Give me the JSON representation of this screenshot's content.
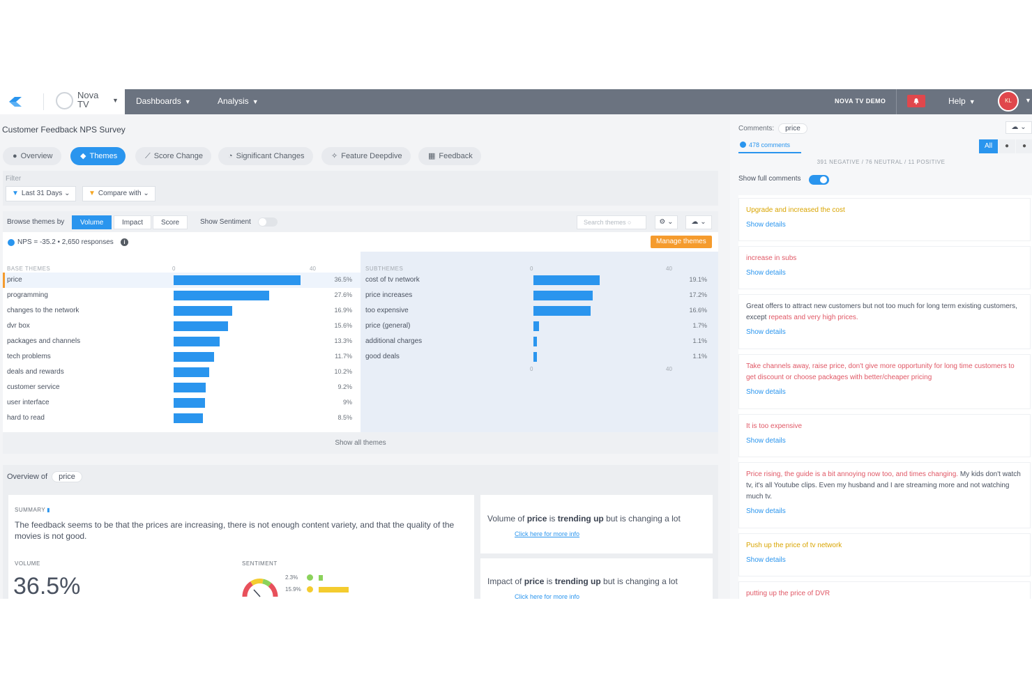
{
  "topbar": {
    "brand": "Nova TV",
    "nav": [
      {
        "label": "Dashboards"
      },
      {
        "label": "Analysis"
      }
    ],
    "demo_label": "NOVA TV DEMO",
    "help": "Help",
    "avatar_initials": "KL"
  },
  "page_title": "Customer Feedback NPS Survey",
  "tabs": [
    {
      "label": "Overview",
      "icon": "info-icon"
    },
    {
      "label": "Themes",
      "icon": "tag-icon",
      "active": true
    },
    {
      "label": "Score Change",
      "icon": "line-chart-icon"
    },
    {
      "label": "Significant Changes",
      "icon": "stopwatch-icon"
    },
    {
      "label": "Feature Deepdive",
      "icon": "magic-wand-icon"
    },
    {
      "label": "Feedback",
      "icon": "table-icon"
    }
  ],
  "filter": {
    "label": "Filter",
    "date_range": "Last 31 Days",
    "compare": "Compare with"
  },
  "browse": {
    "label": "Browse themes by",
    "options": [
      "Volume",
      "Impact",
      "Score"
    ],
    "active": "Volume",
    "show_sentiment": "Show Sentiment",
    "search_placeholder": "Search themes"
  },
  "nps": {
    "text": "NPS = -35.2 • 2,650 responses",
    "manage_button": "Manage themes"
  },
  "base_themes": {
    "header": "BASE THEMES",
    "axis_min": "0",
    "axis_max": "40",
    "rows": [
      {
        "label": "price",
        "value": 36.5,
        "pct": "36.5%"
      },
      {
        "label": "programming",
        "value": 27.6,
        "pct": "27.6%"
      },
      {
        "label": "changes to the network",
        "value": 16.9,
        "pct": "16.9%"
      },
      {
        "label": "dvr box",
        "value": 15.6,
        "pct": "15.6%"
      },
      {
        "label": "packages and channels",
        "value": 13.3,
        "pct": "13.3%"
      },
      {
        "label": "tech problems",
        "value": 11.7,
        "pct": "11.7%"
      },
      {
        "label": "deals and rewards",
        "value": 10.2,
        "pct": "10.2%"
      },
      {
        "label": "customer service",
        "value": 9.2,
        "pct": "9.2%"
      },
      {
        "label": "user interface",
        "value": 9,
        "pct": "9%"
      },
      {
        "label": "hard to read",
        "value": 8.5,
        "pct": "8.5%"
      }
    ]
  },
  "subthemes": {
    "header": "SUBTHEMES",
    "axis_min": "0",
    "axis_max": "40",
    "rows": [
      {
        "label": "cost of tv network",
        "value": 19.1,
        "pct": "19.1%"
      },
      {
        "label": "price increases",
        "value": 17.2,
        "pct": "17.2%"
      },
      {
        "label": "too expensive",
        "value": 16.6,
        "pct": "16.6%"
      },
      {
        "label": "price (general)",
        "value": 1.7,
        "pct": "1.7%"
      },
      {
        "label": "additional charges",
        "value": 1.1,
        "pct": "1.1%"
      },
      {
        "label": "good deals",
        "value": 1.1,
        "pct": "1.1%"
      }
    ]
  },
  "show_all": "Show all themes",
  "overview": {
    "label": "Overview of",
    "theme": "price",
    "summary_header": "SUMMARY",
    "summary_text": "The feedback seems to be that the prices are increasing, there is not enough content variety, and that the quality of the movies is not good.",
    "volume_header": "VOLUME",
    "volume_value": "36.5%",
    "sentiment_header": "SENTIMENT",
    "sentiment": [
      {
        "pct": "2.3%",
        "value": 2.3,
        "color": "#8bd25b"
      },
      {
        "pct": "15.9%",
        "value": 15.9,
        "color": "#f4cc2f"
      }
    ],
    "trend1": {
      "pre": "Volume of ",
      "theme": "price",
      "mid": " is ",
      "bold": "trending up",
      "post": " but is changing a lot",
      "link": "Click here for more info"
    },
    "trend2": {
      "pre": "Impact of ",
      "theme": "price",
      "mid": " is ",
      "bold": "trending up",
      "post": " but is changing a lot",
      "link": "Click here for more info"
    }
  },
  "comments": {
    "label": "Comments:",
    "theme": "price",
    "count": "478 comments",
    "all": "All",
    "counts_text": "391 NEGATIVE / 76 NEUTRAL / 11 POSITIVE",
    "show_full": "Show full comments",
    "show_details": "Show details",
    "items": [
      {
        "text": "Upgrade and increased the cost",
        "tone": "yellow"
      },
      {
        "text": "increase in subs",
        "tone": "red"
      },
      {
        "text": "Great offers to attract new customers but not too much for long term existing customers, except ",
        "hl": "repeats and very high prices.",
        "tone": "dark"
      },
      {
        "text": "Take channels away, raise price, don't give more opportunity for long time customers to get discount or choose packages with better/cheaper pricing",
        "tone": "red"
      },
      {
        "text": "It is too expensive",
        "tone": "red"
      },
      {
        "hl_first": "Price rising, the guide is a bit annoying now too, and times changing.",
        "text": " My kids don't watch tv, it's all Youtube clips. Even my husband and I are streaming more and not watching much tv.",
        "tone": "dark"
      },
      {
        "text": "Push up the price of tv network",
        "tone": "yellow"
      },
      {
        "text": "putting up the price of DVR",
        "tone": "red"
      }
    ]
  },
  "colors": {
    "accent": "#2a95ee",
    "nav_bg": "#6b7380",
    "orange": "#f59b2d",
    "negative": "#e05866"
  }
}
